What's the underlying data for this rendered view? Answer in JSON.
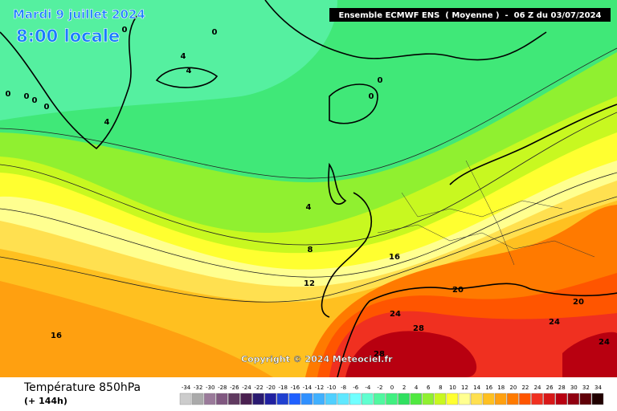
{
  "header": {
    "date": "Mardi 9 juillet 2024",
    "time": "8:00 locale",
    "model": "Ensemble ECMWF ENS  ( Moyenne )  -  06 Z du 03/07/2024"
  },
  "map": {
    "contour_labels": [
      0,
      0,
      4,
      4,
      0,
      0,
      0,
      0,
      4,
      0,
      0,
      4,
      8,
      12,
      16,
      16,
      20,
      20,
      24,
      24,
      24,
      28,
      28
    ]
  },
  "copyright": "Copyright © 2024 Meteociel.fr",
  "footer": {
    "title": "Température 850hPa",
    "lead": "(+ 144h)"
  },
  "legend": {
    "values": [
      -34,
      -32,
      -30,
      -28,
      -26,
      -24,
      -22,
      -20,
      -18,
      -16,
      -14,
      -12,
      -10,
      -8,
      -6,
      -4,
      -2,
      0,
      2,
      4,
      6,
      8,
      10,
      12,
      14,
      16,
      18,
      20,
      22,
      24,
      26,
      28,
      30,
      32,
      34
    ],
    "colors": [
      "#cccccc",
      "#aaaaaa",
      "#9a7a9a",
      "#805880",
      "#603a60",
      "#4a2050",
      "#2a1a70",
      "#2020a0",
      "#2040d0",
      "#2060ff",
      "#3090ff",
      "#40b0ff",
      "#50d0ff",
      "#60e8ff",
      "#70ffff",
      "#60ffd0",
      "#50f8a0",
      "#40f080",
      "#30e060",
      "#50e840",
      "#90f030",
      "#c8f820",
      "#ffff30",
      "#ffff90",
      "#ffe050",
      "#ffc020",
      "#ffa010",
      "#ff7a00",
      "#ff5500",
      "#f03020",
      "#d81818",
      "#b80010",
      "#900010",
      "#600008",
      "#200000"
    ]
  }
}
